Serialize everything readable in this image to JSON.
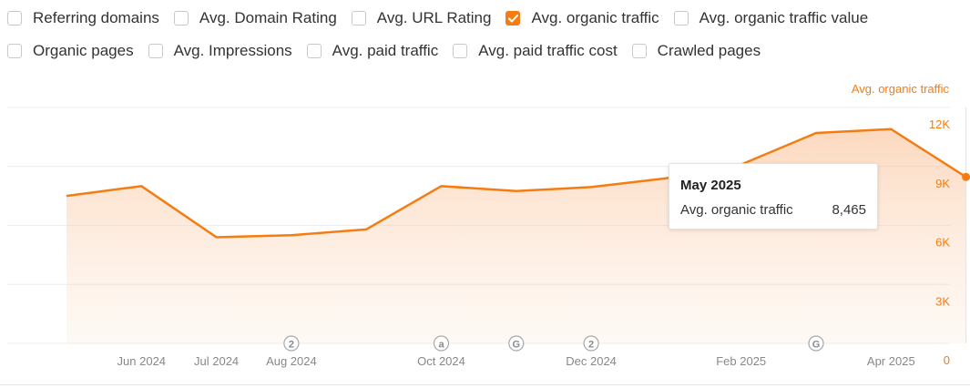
{
  "filters": [
    [
      {
        "label": "Referring domains",
        "checked": false
      },
      {
        "label": "Avg. Domain Rating",
        "checked": false
      },
      {
        "label": "Avg. URL Rating",
        "checked": false
      },
      {
        "label": "Avg. organic traffic",
        "checked": true
      },
      {
        "label": "Avg. organic traffic value",
        "checked": false
      }
    ],
    [
      {
        "label": "Organic pages",
        "checked": false
      },
      {
        "label": "Avg. Impressions",
        "checked": false
      },
      {
        "label": "Avg. paid traffic",
        "checked": false
      },
      {
        "label": "Avg. paid traffic cost",
        "checked": false
      },
      {
        "label": "Crawled pages",
        "checked": false
      }
    ]
  ],
  "colors": {
    "accent": "#f37d13",
    "grid": "#ececec",
    "axis_text": "#888888",
    "marker": "#a8a8a8"
  },
  "tooltip": {
    "title": "May 2025",
    "label": "Avg. organic traffic",
    "value": "8,465"
  },
  "chart_data": {
    "type": "area",
    "series": [
      {
        "name": "Avg. organic traffic",
        "x": [
          "2024-05",
          "2024-06",
          "2024-07",
          "2024-08",
          "2024-09",
          "2024-10",
          "2024-11",
          "2024-12",
          "2025-01",
          "2025-02",
          "2025-03",
          "2025-04",
          "2025-05"
        ],
        "values": [
          7500,
          8000,
          5400,
          5500,
          5800,
          8000,
          7750,
          7950,
          8400,
          9100,
          10700,
          10900,
          8465
        ]
      }
    ],
    "x_tick_labels": [
      "Jun 2024",
      "Jul 2024",
      "Aug 2024",
      "Oct 2024",
      "Dec 2024",
      "Feb 2025",
      "Apr 2025"
    ],
    "x_tick_at": [
      "2024-06",
      "2024-07",
      "2024-08",
      "2024-10",
      "2024-12",
      "2025-02",
      "2025-04"
    ],
    "y_tick_labels": [
      "0",
      "3K",
      "6K",
      "9K",
      "12K"
    ],
    "y_ticks": [
      0,
      3000,
      6000,
      9000,
      12000
    ],
    "ylim": [
      0,
      12000
    ],
    "grid": true,
    "y_axis_side": "right",
    "legend": "top-right",
    "markers": [
      {
        "at": "2024-08",
        "label": "2"
      },
      {
        "at": "2024-10",
        "label": "a"
      },
      {
        "at": "2024-11",
        "label": "G"
      },
      {
        "at": "2024-12",
        "label": "2"
      },
      {
        "at": "2025-03",
        "label": "G"
      }
    ],
    "highlight": "2025-05"
  }
}
